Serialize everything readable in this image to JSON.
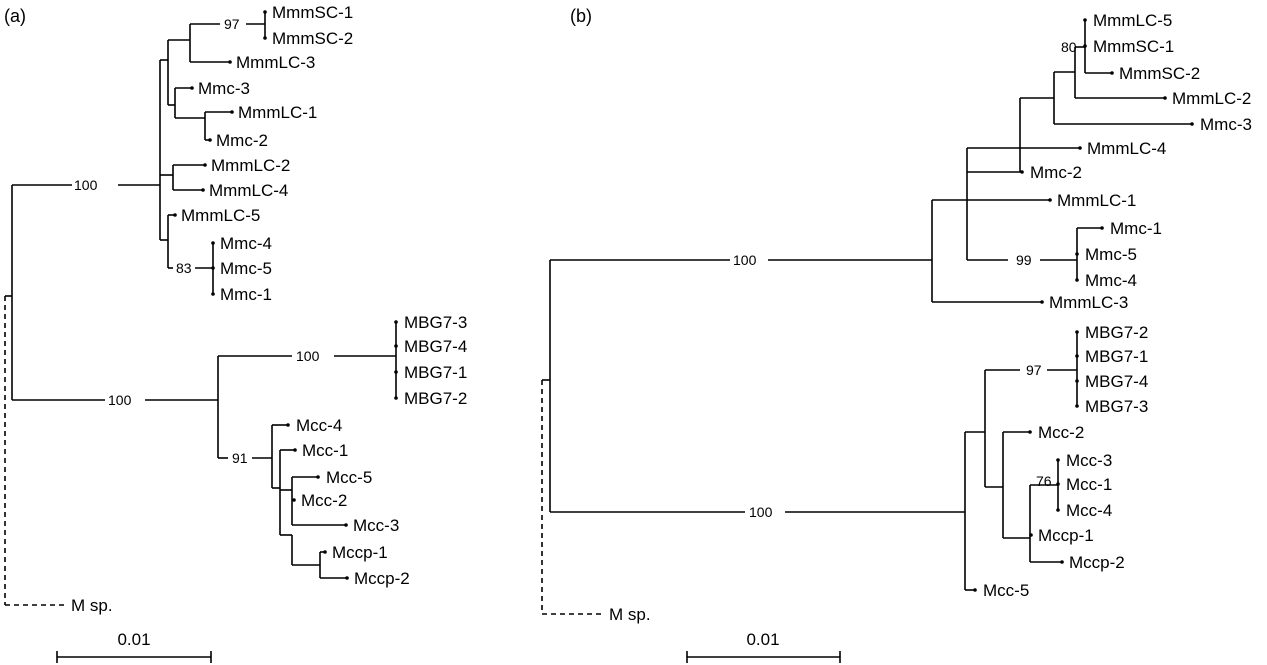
{
  "panels": [
    {
      "label": "(a)",
      "scale_label": "0.01",
      "outgroup": "M sp.",
      "leaves": [
        "MmmSC-1",
        "MmmSC-2",
        "MmmLC-3",
        "Mmc-3",
        "MmmLC-1",
        "Mmc-2",
        "MmmLC-2",
        "MmmLC-4",
        "MmmLC-5",
        "Mmc-4",
        "Mmc-5",
        "Mmc-1",
        "MBG7-3",
        "MBG7-4",
        "MBG7-1",
        "MBG7-2",
        "Mcc-4",
        "Mcc-1",
        "Mcc-5",
        "Mcc-2",
        "Mcc-3",
        "Mccp-1",
        "Mccp-2"
      ],
      "bootstraps": [
        "97",
        "100",
        "83",
        "100",
        "100",
        "91"
      ]
    },
    {
      "label": "(b)",
      "scale_label": "0.01",
      "outgroup": "M sp.",
      "leaves": [
        "MmmLC-5",
        "MmmSC-1",
        "MmmSC-2",
        "MmmLC-2",
        "Mmc-3",
        "MmmLC-4",
        "Mmc-2",
        "MmmLC-1",
        "Mmc-1",
        "Mmc-5",
        "Mmc-4",
        "MmmLC-3",
        "MBG7-2",
        "MBG7-1",
        "MBG7-4",
        "MBG7-3",
        "Mcc-2",
        "Mcc-3",
        "Mcc-1",
        "Mcc-4",
        "Mccp-1",
        "Mccp-2",
        "Mcc-5"
      ],
      "bootstraps": [
        "80",
        "100",
        "99",
        "97",
        "76",
        "100"
      ]
    }
  ]
}
